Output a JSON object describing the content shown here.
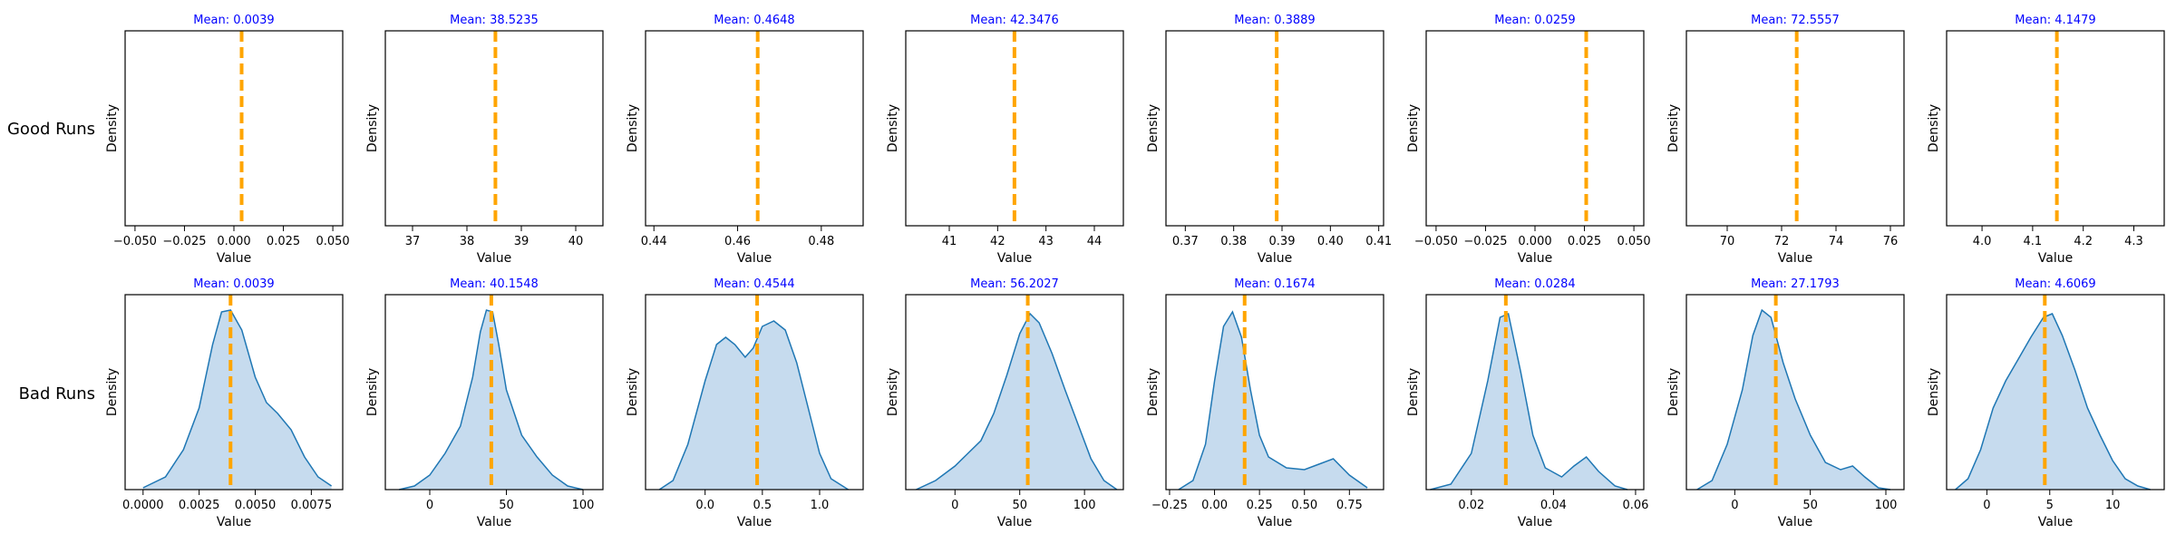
{
  "row_labels": [
    "Good Runs",
    "Bad Runs"
  ],
  "chart_data": {
    "type": "kde-grid",
    "title": "",
    "rows": 2,
    "cols": 8,
    "xlabel": "Value",
    "ylabel": "Density",
    "mean_color": "#ffa500",
    "title_color": "#0000ff",
    "fill_color": "#c6dbee",
    "line_color": "#1f77b4",
    "panels": [
      {
        "row": 0,
        "col": 0,
        "title": "Mean: 0.0039",
        "mean": 0.0039,
        "xlim": [
          -0.055,
          0.055
        ],
        "xticks": [
          -0.05,
          -0.025,
          0,
          0.025,
          0.05
        ],
        "xtick_labels": [
          "−0.050",
          "−0.025",
          "0.000",
          "0.025",
          "0.050"
        ],
        "curve": []
      },
      {
        "row": 0,
        "col": 1,
        "title": "Mean: 38.5235",
        "mean": 38.5235,
        "xlim": [
          36.5,
          40.5
        ],
        "xticks": [
          37,
          38,
          39,
          40
        ],
        "xtick_labels": [
          "37",
          "38",
          "39",
          "40"
        ],
        "curve": []
      },
      {
        "row": 0,
        "col": 2,
        "title": "Mean: 0.4648",
        "mean": 0.4648,
        "xlim": [
          0.438,
          0.49
        ],
        "xticks": [
          0.44,
          0.46,
          0.48
        ],
        "xtick_labels": [
          "0.44",
          "0.46",
          "0.48"
        ],
        "curve": []
      },
      {
        "row": 0,
        "col": 3,
        "title": "Mean: 42.3476",
        "mean": 42.3476,
        "xlim": [
          40.1,
          44.6
        ],
        "xticks": [
          41,
          42,
          43,
          44
        ],
        "xtick_labels": [
          "41",
          "42",
          "43",
          "44"
        ],
        "curve": []
      },
      {
        "row": 0,
        "col": 4,
        "title": "Mean: 0.3889",
        "mean": 0.3889,
        "xlim": [
          0.366,
          0.411
        ],
        "xticks": [
          0.37,
          0.38,
          0.39,
          0.4,
          0.41
        ],
        "xtick_labels": [
          "0.37",
          "0.38",
          "0.39",
          "0.40",
          "0.41"
        ],
        "curve": []
      },
      {
        "row": 0,
        "col": 5,
        "title": "Mean: 0.0259",
        "mean": 0.0259,
        "xlim": [
          -0.055,
          0.055
        ],
        "xticks": [
          -0.05,
          -0.025,
          0,
          0.025,
          0.05
        ],
        "xtick_labels": [
          "−0.050",
          "−0.025",
          "0.000",
          "0.025",
          "0.050"
        ],
        "curve": []
      },
      {
        "row": 0,
        "col": 6,
        "title": "Mean: 72.5557",
        "mean": 72.5557,
        "xlim": [
          68.5,
          76.5
        ],
        "xticks": [
          70,
          72,
          74,
          76
        ],
        "xtick_labels": [
          "70",
          "72",
          "74",
          "76"
        ],
        "curve": []
      },
      {
        "row": 0,
        "col": 7,
        "title": "Mean: 4.1479",
        "mean": 4.1479,
        "xlim": [
          3.93,
          4.36
        ],
        "xticks": [
          4.0,
          4.1,
          4.2,
          4.3
        ],
        "xtick_labels": [
          "4.0",
          "4.1",
          "4.2",
          "4.3"
        ],
        "curve": []
      },
      {
        "row": 1,
        "col": 0,
        "title": "Mean: 0.0039",
        "mean": 0.0039,
        "xlim": [
          -0.0008,
          0.0089
        ],
        "xticks": [
          0,
          0.0025,
          0.005,
          0.0075
        ],
        "xtick_labels": [
          "0.0000",
          "0.0025",
          "0.0050",
          "0.0075"
        ],
        "curve": [
          [
            0.0,
            0.01
          ],
          [
            0.001,
            0.07
          ],
          [
            0.0018,
            0.22
          ],
          [
            0.0025,
            0.45
          ],
          [
            0.0031,
            0.8
          ],
          [
            0.0035,
            0.98
          ],
          [
            0.0039,
            0.99
          ],
          [
            0.0044,
            0.88
          ],
          [
            0.005,
            0.62
          ],
          [
            0.0055,
            0.48
          ],
          [
            0.006,
            0.42
          ],
          [
            0.0066,
            0.33
          ],
          [
            0.0072,
            0.18
          ],
          [
            0.0078,
            0.07
          ],
          [
            0.0084,
            0.02
          ]
        ]
      },
      {
        "row": 1,
        "col": 1,
        "title": "Mean: 40.1548",
        "mean": 40.1548,
        "xlim": [
          -29,
          113
        ],
        "xticks": [
          0,
          50,
          100
        ],
        "xtick_labels": [
          "0",
          "50",
          "100"
        ],
        "curve": [
          [
            -20,
            0.0
          ],
          [
            -10,
            0.02
          ],
          [
            0,
            0.08
          ],
          [
            10,
            0.2
          ],
          [
            20,
            0.35
          ],
          [
            28,
            0.62
          ],
          [
            33,
            0.87
          ],
          [
            37,
            0.99
          ],
          [
            41,
            0.98
          ],
          [
            45,
            0.8
          ],
          [
            50,
            0.55
          ],
          [
            60,
            0.3
          ],
          [
            70,
            0.18
          ],
          [
            80,
            0.08
          ],
          [
            90,
            0.02
          ],
          [
            100,
            0.0
          ]
        ]
      },
      {
        "row": 1,
        "col": 2,
        "title": "Mean: 0.4544",
        "mean": 0.4544,
        "xlim": [
          -0.52,
          1.38
        ],
        "xticks": [
          0,
          0.5,
          1.0
        ],
        "xtick_labels": [
          "0.0",
          "0.5",
          "1.0"
        ],
        "curve": [
          [
            -0.4,
            0.0
          ],
          [
            -0.28,
            0.05
          ],
          [
            -0.15,
            0.25
          ],
          [
            0.0,
            0.6
          ],
          [
            0.1,
            0.8
          ],
          [
            0.18,
            0.84
          ],
          [
            0.26,
            0.8
          ],
          [
            0.35,
            0.73
          ],
          [
            0.42,
            0.78
          ],
          [
            0.5,
            0.9
          ],
          [
            0.6,
            0.93
          ],
          [
            0.7,
            0.88
          ],
          [
            0.8,
            0.7
          ],
          [
            0.9,
            0.45
          ],
          [
            1.0,
            0.2
          ],
          [
            1.1,
            0.06
          ],
          [
            1.25,
            0.0
          ]
        ]
      },
      {
        "row": 1,
        "col": 3,
        "title": "Mean: 56.2027",
        "mean": 56.2027,
        "xlim": [
          -38,
          130
        ],
        "xticks": [
          0,
          50,
          100
        ],
        "xtick_labels": [
          "0",
          "50",
          "100"
        ],
        "curve": [
          [
            -30,
            0.0
          ],
          [
            -15,
            0.05
          ],
          [
            0,
            0.13
          ],
          [
            10,
            0.2
          ],
          [
            20,
            0.27
          ],
          [
            30,
            0.42
          ],
          [
            40,
            0.63
          ],
          [
            50,
            0.86
          ],
          [
            58,
            0.97
          ],
          [
            65,
            0.92
          ],
          [
            75,
            0.75
          ],
          [
            85,
            0.55
          ],
          [
            95,
            0.36
          ],
          [
            105,
            0.17
          ],
          [
            115,
            0.05
          ],
          [
            125,
            0.0
          ]
        ]
      },
      {
        "row": 1,
        "col": 4,
        "title": "Mean: 0.1674",
        "mean": 0.1674,
        "xlim": [
          -0.27,
          0.94
        ],
        "xticks": [
          -0.25,
          0,
          0.25,
          0.5,
          0.75
        ],
        "xtick_labels": [
          "−0.25",
          "0.00",
          "0.25",
          "0.50",
          "0.75"
        ],
        "curve": [
          [
            -0.2,
            0.0
          ],
          [
            -0.12,
            0.05
          ],
          [
            -0.05,
            0.25
          ],
          [
            0.0,
            0.6
          ],
          [
            0.05,
            0.9
          ],
          [
            0.1,
            0.98
          ],
          [
            0.15,
            0.84
          ],
          [
            0.2,
            0.55
          ],
          [
            0.25,
            0.3
          ],
          [
            0.3,
            0.18
          ],
          [
            0.4,
            0.12
          ],
          [
            0.5,
            0.11
          ],
          [
            0.58,
            0.14
          ],
          [
            0.66,
            0.17
          ],
          [
            0.75,
            0.08
          ],
          [
            0.85,
            0.01
          ]
        ]
      },
      {
        "row": 1,
        "col": 5,
        "title": "Mean: 0.0284",
        "mean": 0.0284,
        "xlim": [
          0.009,
          0.062
        ],
        "xticks": [
          0.02,
          0.04,
          0.06
        ],
        "xtick_labels": [
          "0.02",
          "0.04",
          "0.06"
        ],
        "curve": [
          [
            0.01,
            0.0
          ],
          [
            0.015,
            0.03
          ],
          [
            0.02,
            0.2
          ],
          [
            0.024,
            0.6
          ],
          [
            0.027,
            0.95
          ],
          [
            0.029,
            0.97
          ],
          [
            0.032,
            0.65
          ],
          [
            0.035,
            0.3
          ],
          [
            0.038,
            0.12
          ],
          [
            0.042,
            0.07
          ],
          [
            0.045,
            0.13
          ],
          [
            0.048,
            0.18
          ],
          [
            0.051,
            0.1
          ],
          [
            0.055,
            0.02
          ],
          [
            0.058,
            0.0
          ]
        ]
      },
      {
        "row": 1,
        "col": 6,
        "title": "Mean: 27.1793",
        "mean": 27.1793,
        "xlim": [
          -32,
          112
        ],
        "xticks": [
          0,
          50,
          100
        ],
        "xtick_labels": [
          "0",
          "50",
          "100"
        ],
        "curve": [
          [
            -25,
            0.0
          ],
          [
            -15,
            0.05
          ],
          [
            -5,
            0.25
          ],
          [
            5,
            0.55
          ],
          [
            12,
            0.85
          ],
          [
            18,
            0.99
          ],
          [
            24,
            0.95
          ],
          [
            32,
            0.7
          ],
          [
            40,
            0.5
          ],
          [
            50,
            0.3
          ],
          [
            60,
            0.15
          ],
          [
            70,
            0.11
          ],
          [
            78,
            0.13
          ],
          [
            86,
            0.07
          ],
          [
            95,
            0.01
          ],
          [
            103,
            0.0
          ]
        ]
      },
      {
        "row": 1,
        "col": 7,
        "title": "Mean: 4.6069",
        "mean": 4.6069,
        "xlim": [
          -3.2,
          14.1
        ],
        "xticks": [
          0,
          5,
          10
        ],
        "xtick_labels": [
          "0",
          "5",
          "10"
        ],
        "curve": [
          [
            -2.5,
            0.0
          ],
          [
            -1.5,
            0.06
          ],
          [
            -0.5,
            0.22
          ],
          [
            0.5,
            0.45
          ],
          [
            1.5,
            0.6
          ],
          [
            2.5,
            0.72
          ],
          [
            3.5,
            0.84
          ],
          [
            4.5,
            0.95
          ],
          [
            5.2,
            0.97
          ],
          [
            6,
            0.85
          ],
          [
            7,
            0.66
          ],
          [
            8,
            0.45
          ],
          [
            9,
            0.3
          ],
          [
            10,
            0.16
          ],
          [
            11,
            0.06
          ],
          [
            12,
            0.02
          ],
          [
            13,
            0.0
          ]
        ]
      }
    ]
  }
}
